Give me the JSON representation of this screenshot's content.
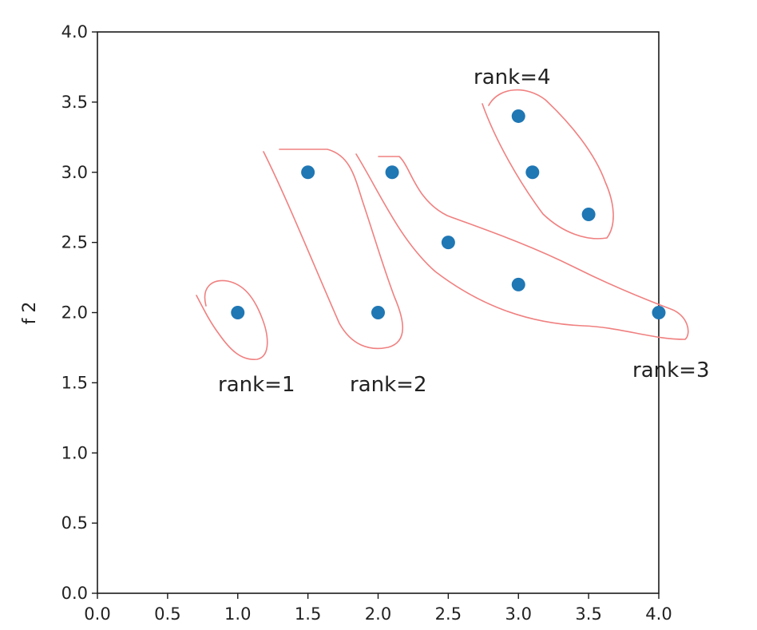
{
  "chart_data": {
    "type": "scatter",
    "title": "",
    "xlabel": "",
    "ylabel": "f 2",
    "xlim": [
      0.0,
      4.0
    ],
    "ylim": [
      0.0,
      4.0
    ],
    "x_ticks": [
      "0.0",
      "0.5",
      "1.0",
      "1.5",
      "2.0",
      "2.5",
      "3.0",
      "3.5",
      "4.0"
    ],
    "y_ticks": [
      "0.0",
      "0.5",
      "1.0",
      "1.5",
      "2.0",
      "2.5",
      "3.0",
      "3.5",
      "4.0"
    ],
    "grid": false,
    "legend": "none",
    "point_color": "#1f77b4",
    "outline_color": "#f08080",
    "points": [
      {
        "x": 1.0,
        "y": 2.0
      },
      {
        "x": 1.5,
        "y": 3.0
      },
      {
        "x": 2.0,
        "y": 2.0
      },
      {
        "x": 2.1,
        "y": 3.0
      },
      {
        "x": 2.5,
        "y": 2.5
      },
      {
        "x": 3.0,
        "y": 2.2
      },
      {
        "x": 4.0,
        "y": 2.0
      },
      {
        "x": 3.0,
        "y": 3.4
      },
      {
        "x": 3.1,
        "y": 3.0
      },
      {
        "x": 3.5,
        "y": 2.7
      }
    ],
    "groups": [
      {
        "label": "rank=1",
        "points": [
          [
            1.0,
            2.0
          ]
        ]
      },
      {
        "label": "rank=2",
        "points": [
          [
            1.5,
            3.0
          ],
          [
            2.0,
            2.0
          ]
        ]
      },
      {
        "label": "rank=3",
        "points": [
          [
            2.1,
            3.0
          ],
          [
            2.5,
            2.5
          ],
          [
            3.0,
            2.2
          ],
          [
            4.0,
            2.0
          ]
        ]
      },
      {
        "label": "rank=4",
        "points": [
          [
            3.0,
            3.4
          ],
          [
            3.1,
            3.0
          ],
          [
            3.5,
            2.7
          ]
        ]
      }
    ]
  }
}
